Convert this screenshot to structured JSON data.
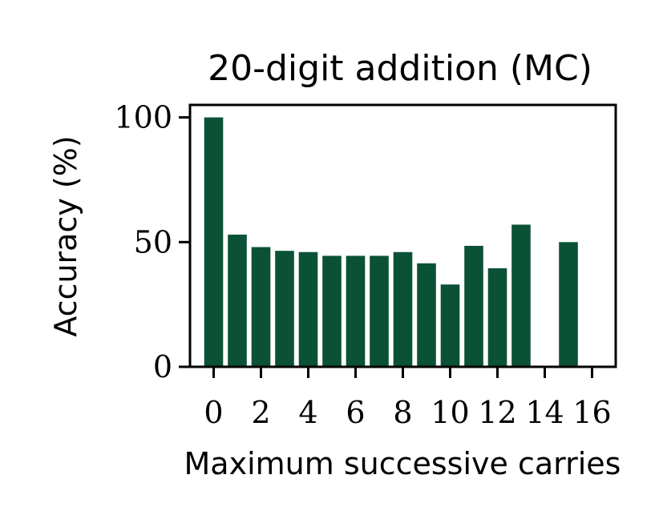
{
  "chart_data": {
    "type": "bar",
    "title": "20-digit addition (MC)",
    "xlabel": "Maximum successive carries",
    "ylabel": "Accuracy (%)",
    "x": [
      0,
      1,
      2,
      3,
      4,
      5,
      6,
      7,
      8,
      9,
      10,
      11,
      12,
      13,
      14,
      15,
      16
    ],
    "values": [
      100,
      53,
      48,
      46.5,
      46,
      44.5,
      44.5,
      44.5,
      46,
      41.5,
      33,
      48.5,
      39.5,
      57,
      null,
      50,
      null
    ],
    "xlim": [
      -1,
      17
    ],
    "ylim": [
      0,
      105
    ],
    "xticks": [
      0,
      2,
      4,
      6,
      8,
      10,
      12,
      14,
      16
    ],
    "xtick_labels": [
      "0",
      "2",
      "4",
      "6",
      "8",
      "10",
      "12",
      "14",
      "16"
    ],
    "yticks": [
      0,
      50,
      100
    ],
    "ytick_labels": [
      "0",
      "50",
      "100"
    ],
    "bar_color": "#0b5136",
    "grid": false,
    "legend": "none"
  }
}
